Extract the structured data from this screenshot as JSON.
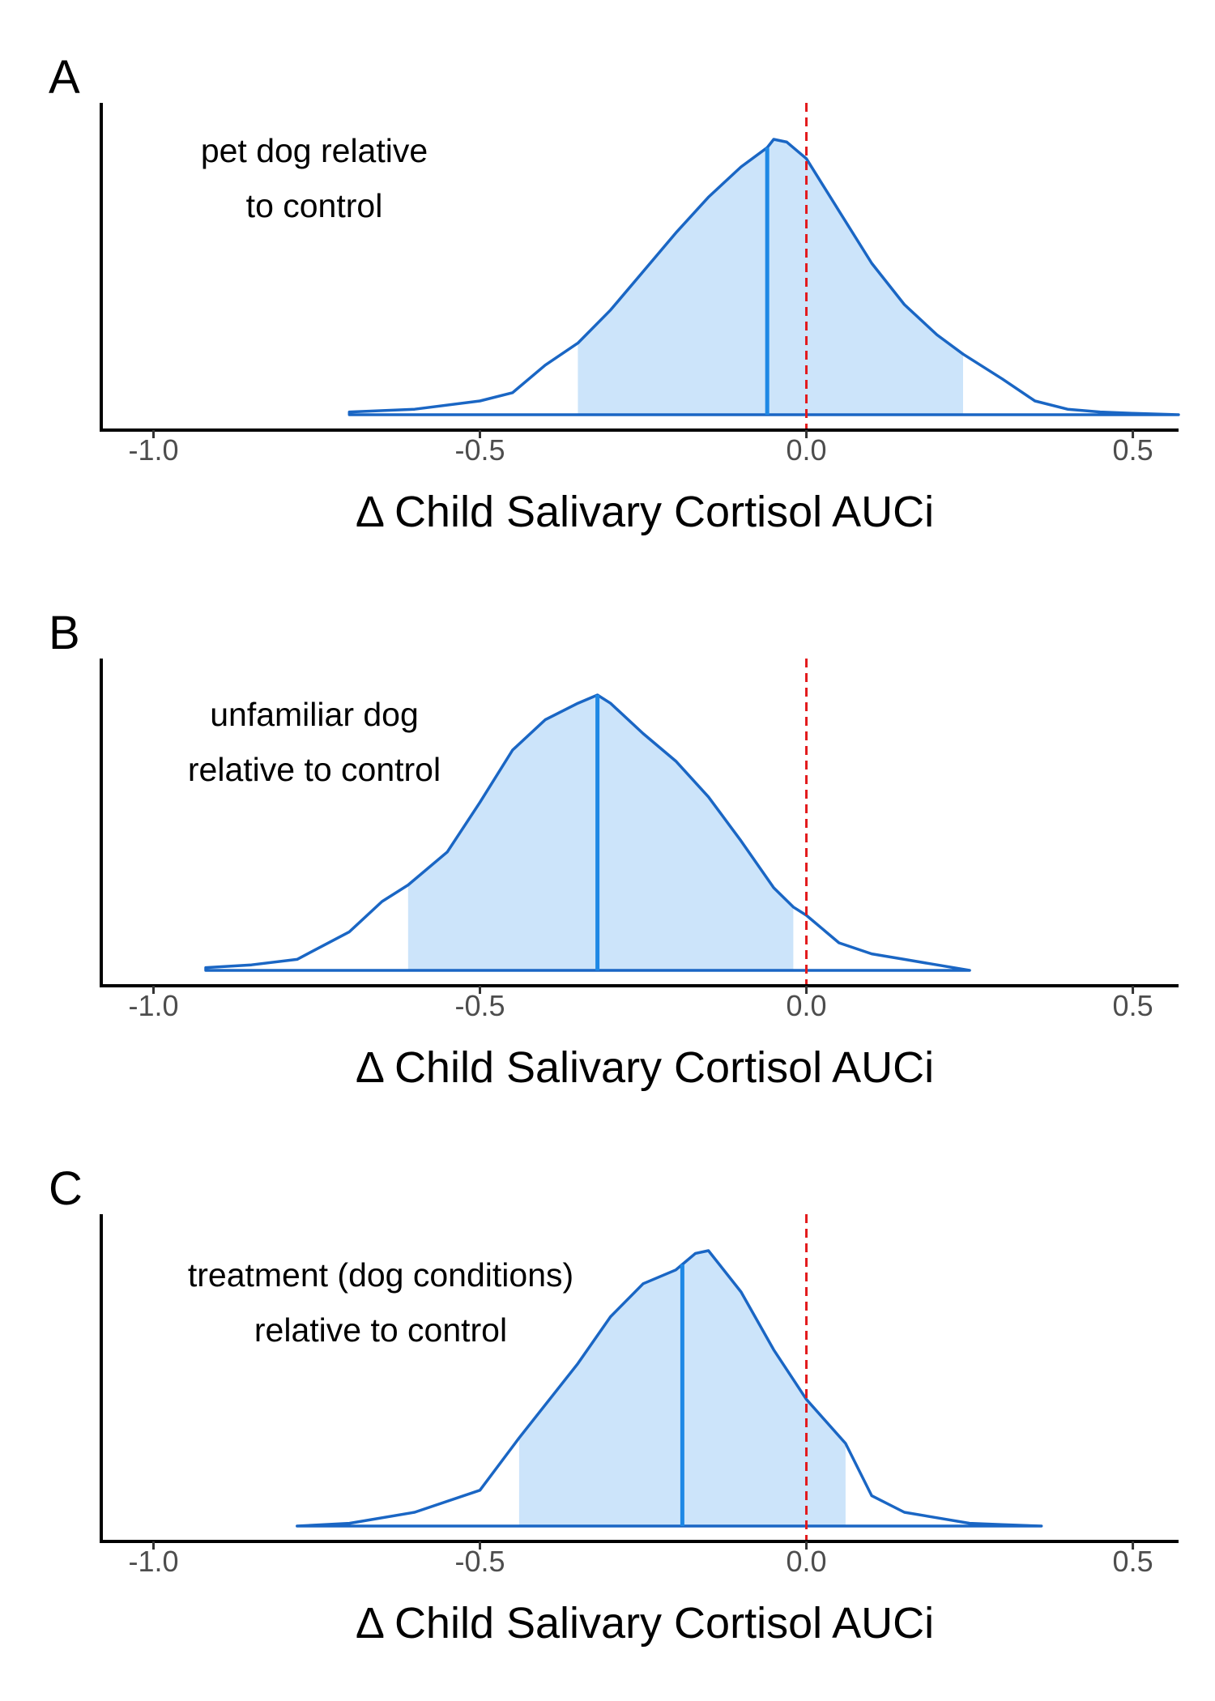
{
  "chart_data": [
    {
      "type": "area",
      "panel_label": "A",
      "annotation": [
        "pet dog relative",
        "to control"
      ],
      "xlabel": "Δ Child Salivary Cortisol AUCi",
      "ylabel": "",
      "xlim": [
        -1.08,
        0.57
      ],
      "xticks": [
        -1.0,
        -0.5,
        0.0,
        0.5
      ],
      "xtick_labels": [
        "-1.0",
        "-0.5",
        "0.0",
        "0.5"
      ],
      "reference_line": 0.0,
      "point_estimate": -0.06,
      "interval": [
        -0.35,
        0.24
      ],
      "density": {
        "x": [
          -0.7,
          -0.6,
          -0.5,
          -0.45,
          -0.4,
          -0.35,
          -0.3,
          -0.25,
          -0.2,
          -0.15,
          -0.1,
          -0.06,
          -0.05,
          -0.03,
          0.0,
          0.05,
          0.1,
          0.15,
          0.2,
          0.24,
          0.3,
          0.35,
          0.4,
          0.45,
          0.5,
          0.57
        ],
        "y": [
          0.01,
          0.02,
          0.05,
          0.08,
          0.18,
          0.26,
          0.38,
          0.52,
          0.66,
          0.79,
          0.9,
          0.97,
          1.0,
          0.99,
          0.93,
          0.74,
          0.55,
          0.4,
          0.29,
          0.22,
          0.13,
          0.05,
          0.02,
          0.01,
          0.005,
          0.0
        ]
      },
      "colors": {
        "line": "#1a66c4",
        "fill": "#cce4fa",
        "estimate": "#1e88e5",
        "reference": "#e31a1c"
      }
    },
    {
      "type": "area",
      "panel_label": "B",
      "annotation": [
        "unfamiliar dog",
        "relative to control"
      ],
      "xlabel": "Δ Child Salivary Cortisol AUCi",
      "ylabel": "",
      "xlim": [
        -1.08,
        0.57
      ],
      "xticks": [
        -1.0,
        -0.5,
        0.0,
        0.5
      ],
      "xtick_labels": [
        "-1.0",
        "-0.5",
        "0.0",
        "0.5"
      ],
      "reference_line": 0.0,
      "point_estimate": -0.32,
      "interval": [
        -0.61,
        -0.02
      ],
      "density": {
        "x": [
          -0.92,
          -0.85,
          -0.78,
          -0.7,
          -0.65,
          -0.61,
          -0.55,
          -0.5,
          -0.45,
          -0.4,
          -0.35,
          -0.32,
          -0.3,
          -0.25,
          -0.2,
          -0.15,
          -0.1,
          -0.05,
          -0.02,
          0.0,
          0.05,
          0.1,
          0.15,
          0.2,
          0.25
        ],
        "y": [
          0.01,
          0.02,
          0.04,
          0.14,
          0.25,
          0.31,
          0.43,
          0.61,
          0.8,
          0.91,
          0.97,
          1.0,
          0.97,
          0.86,
          0.76,
          0.63,
          0.47,
          0.3,
          0.23,
          0.2,
          0.1,
          0.06,
          0.04,
          0.02,
          0.0
        ]
      },
      "colors": {
        "line": "#1a66c4",
        "fill": "#cce4fa",
        "estimate": "#1e88e5",
        "reference": "#e31a1c"
      }
    },
    {
      "type": "area",
      "panel_label": "C",
      "annotation": [
        "treatment (dog conditions)",
        "relative to control"
      ],
      "xlabel": "Δ Child Salivary Cortisol AUCi",
      "ylabel": "",
      "xlim": [
        -1.08,
        0.57
      ],
      "xticks": [
        -1.0,
        -0.5,
        0.0,
        0.5
      ],
      "xtick_labels": [
        "-1.0",
        "-0.5",
        "0.0",
        "0.5"
      ],
      "reference_line": 0.0,
      "point_estimate": -0.19,
      "interval": [
        -0.44,
        0.06
      ],
      "density": {
        "x": [
          -0.78,
          -0.7,
          -0.6,
          -0.5,
          -0.44,
          -0.4,
          -0.35,
          -0.3,
          -0.25,
          -0.2,
          -0.19,
          -0.17,
          -0.15,
          -0.1,
          -0.05,
          0.0,
          0.06,
          0.1,
          0.15,
          0.2,
          0.25,
          0.3,
          0.36
        ],
        "y": [
          0.0,
          0.01,
          0.05,
          0.13,
          0.32,
          0.44,
          0.59,
          0.76,
          0.88,
          0.93,
          0.95,
          0.99,
          1.0,
          0.85,
          0.64,
          0.46,
          0.3,
          0.11,
          0.05,
          0.03,
          0.01,
          0.005,
          0.0
        ]
      },
      "colors": {
        "line": "#1a66c4",
        "fill": "#cce4fa",
        "estimate": "#1e88e5",
        "reference": "#e31a1c"
      }
    }
  ]
}
